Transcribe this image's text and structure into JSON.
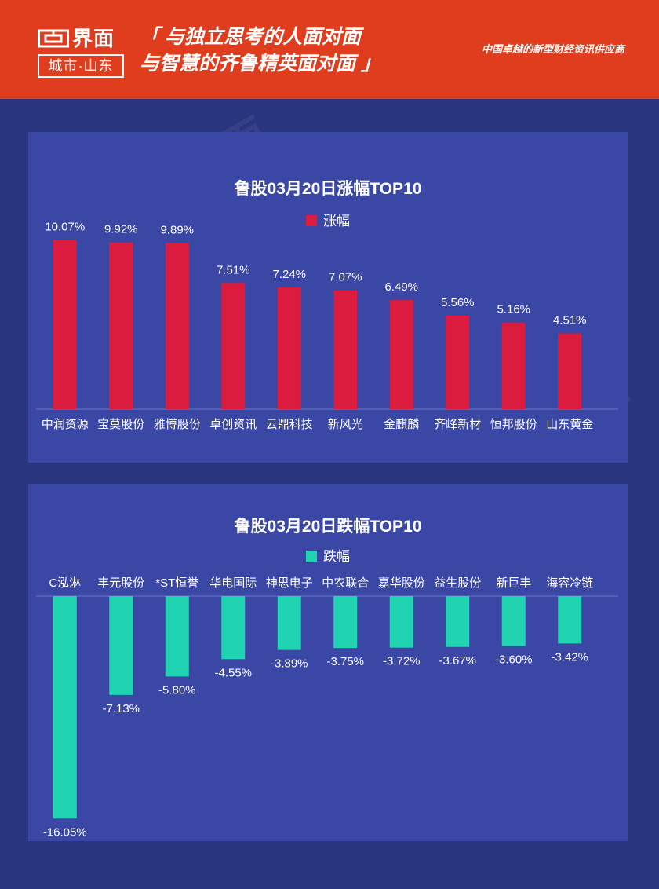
{
  "header": {
    "brand_name": "界面",
    "brand_sub": "城市·山东",
    "slogan_line1": "「 与独立思考的人面对面",
    "slogan_line2": "与智慧的齐鲁精英面对面 」",
    "tagline": "中国卓越的新型财经资讯供应商",
    "bg_color": "#df3d1d"
  },
  "chart_data": [
    {
      "type": "bar",
      "title": "鲁股03月20日涨幅TOP10",
      "legend": "涨幅",
      "color": "#dc1c3f",
      "categories": [
        "中润资源",
        "宝莫股份",
        "雅博股份",
        "卓创资讯",
        "云鼎科技",
        "新风光",
        "金麒麟",
        "齐峰新材",
        "恒邦股份",
        "山东黄金"
      ],
      "values": [
        10.07,
        9.92,
        9.89,
        7.51,
        7.24,
        7.07,
        6.49,
        5.56,
        5.16,
        4.51
      ],
      "labels": [
        "10.07%",
        "9.92%",
        "9.89%",
        "7.51%",
        "7.24%",
        "7.07%",
        "6.49%",
        "5.56%",
        "5.16%",
        "4.51%"
      ]
    },
    {
      "type": "bar",
      "title": "鲁股03月20日跌幅TOP10",
      "legend": "跌幅",
      "color": "#21d4b1",
      "categories": [
        "C泓淋",
        "丰元股份",
        "*ST恒誉",
        "华电国际",
        "神思电子",
        "中农联合",
        "嘉华股份",
        "益生股份",
        "新巨丰",
        "海容冷链"
      ],
      "values": [
        -16.05,
        -7.13,
        -5.8,
        -4.55,
        -3.89,
        -3.75,
        -3.72,
        -3.67,
        -3.6,
        -3.42
      ],
      "labels": [
        "-16.05%",
        "-7.13%",
        "-5.80%",
        "-4.55%",
        "-3.89%",
        "-3.75%",
        "-3.72%",
        "-3.67%",
        "-3.60%",
        "-3.42%"
      ]
    }
  ]
}
